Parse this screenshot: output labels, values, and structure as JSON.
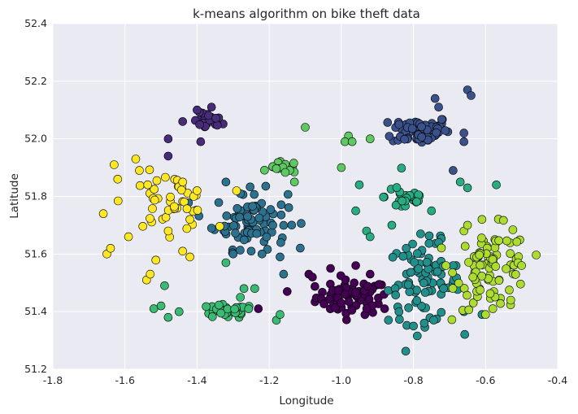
{
  "chart_data": {
    "type": "scatter",
    "title": "k-means algorithm on bike theft data",
    "xlabel": "Longitude",
    "ylabel": "Latitude",
    "xlim": [
      -1.8,
      -0.4
    ],
    "ylim": [
      51.2,
      52.4
    ],
    "xticks": [
      "-1.8",
      "-1.6",
      "-1.4",
      "-1.2",
      "-1.0",
      "-0.8",
      "-0.6",
      "-0.4"
    ],
    "yticks": [
      "51.2",
      "51.4",
      "51.6",
      "51.8",
      "52.0",
      "52.2",
      "52.4"
    ],
    "grid": true,
    "colors": {
      "background": "#eaeaf2",
      "grid": "#ffffff",
      "marker_edge": "#000000"
    },
    "clusters": [
      {
        "color": "#440154",
        "center": [
          -0.97,
          51.45
        ],
        "spread": [
          0.05,
          0.03
        ],
        "n": 75,
        "extra": [
          [
            -1.09,
            51.53
          ],
          [
            -0.96,
            51.56
          ],
          [
            -1.23,
            51.41
          ],
          [
            -1.08,
            51.52
          ],
          [
            -1.15,
            51.47
          ],
          [
            -0.92,
            51.53
          ],
          [
            -0.88,
            51.41
          ],
          [
            -1.03,
            51.55
          ]
        ]
      },
      {
        "color": "#472c7a",
        "center": [
          -1.37,
          52.06
        ],
        "spread": [
          0.02,
          0.015
        ],
        "n": 30,
        "extra": [
          [
            -1.4,
            52.1
          ],
          [
            -1.44,
            52.06
          ],
          [
            -1.48,
            52.0
          ],
          [
            -1.48,
            51.94
          ],
          [
            -1.36,
            52.11
          ],
          [
            -1.39,
            51.99
          ]
        ]
      },
      {
        "color": "#3b518b",
        "center": [
          -0.78,
          52.03
        ],
        "spread": [
          0.04,
          0.025
        ],
        "n": 70,
        "extra": [
          [
            -0.74,
            52.14
          ],
          [
            -0.73,
            52.11
          ],
          [
            -0.65,
            52.17
          ],
          [
            -0.64,
            52.15
          ],
          [
            -0.66,
            51.99
          ],
          [
            -0.66,
            52.02
          ],
          [
            -0.84,
            52.05
          ],
          [
            -0.69,
            51.89
          ]
        ]
      },
      {
        "color": "#2c718e",
        "center": [
          -1.25,
          51.72
        ],
        "spread": [
          0.05,
          0.05
        ],
        "n": 80,
        "extra": [
          [
            -1.32,
            51.85
          ],
          [
            -1.28,
            51.81
          ],
          [
            -1.25,
            51.61
          ],
          [
            -1.22,
            51.6
          ],
          [
            -1.16,
            51.53
          ],
          [
            -1.17,
            51.59
          ],
          [
            -1.3,
            51.6
          ],
          [
            -1.36,
            51.69
          ],
          [
            -1.19,
            51.7
          ]
        ]
      },
      {
        "color": "#21908d",
        "center": [
          -0.77,
          51.5
        ],
        "spread": [
          0.05,
          0.07
        ],
        "n": 85,
        "extra": [
          [
            -0.84,
            51.4
          ],
          [
            -0.8,
            51.35
          ],
          [
            -0.77,
            51.36
          ],
          [
            -0.66,
            51.4
          ],
          [
            -0.61,
            51.39
          ],
          [
            -0.69,
            51.56
          ],
          [
            -0.62,
            51.59
          ],
          [
            -0.82,
            51.62
          ],
          [
            -0.73,
            51.64
          ],
          [
            -0.78,
            51.67
          ]
        ]
      },
      {
        "color": "#27ad81",
        "center": [
          -0.82,
          51.8
        ],
        "spread": [
          0.03,
          0.03
        ],
        "n": 30,
        "extra": [
          [
            -0.96,
            51.75
          ],
          [
            -0.95,
            51.84
          ],
          [
            -0.93,
            51.68
          ],
          [
            -0.75,
            51.75
          ],
          [
            -0.67,
            51.85
          ],
          [
            -0.65,
            51.83
          ],
          [
            -0.57,
            51.84
          ],
          [
            -0.86,
            51.7
          ],
          [
            -0.92,
            51.66
          ]
        ]
      },
      {
        "color": "#3aba73",
        "center": [
          -1.32,
          51.4
        ],
        "spread": [
          0.04,
          0.012
        ],
        "n": 35,
        "extra": [
          [
            -1.52,
            51.41
          ],
          [
            -1.5,
            51.42
          ],
          [
            -1.48,
            51.38
          ],
          [
            -1.45,
            51.4
          ],
          [
            -1.27,
            51.48
          ],
          [
            -1.24,
            51.48
          ],
          [
            -1.28,
            51.45
          ],
          [
            -1.32,
            51.57
          ],
          [
            -1.18,
            51.37
          ],
          [
            -1.17,
            51.39
          ],
          [
            -1.49,
            51.49
          ]
        ]
      },
      {
        "color": "#5ec962",
        "center": [
          -1.16,
          51.9
        ],
        "spread": [
          0.02,
          0.01
        ],
        "n": 20,
        "extra": [
          [
            -1.1,
            52.04
          ],
          [
            -0.98,
            52.01
          ],
          [
            -0.99,
            51.99
          ],
          [
            -1.0,
            51.9
          ],
          [
            -1.13,
            51.85
          ],
          [
            -0.92,
            52.0
          ],
          [
            -0.97,
            51.99
          ]
        ]
      },
      {
        "color": "#addc30",
        "center": [
          -0.58,
          51.55
        ],
        "spread": [
          0.05,
          0.07
        ],
        "n": 85,
        "extra": [
          [
            -0.51,
            51.57
          ],
          [
            -0.5,
            51.56
          ],
          [
            -0.53,
            51.44
          ],
          [
            -0.6,
            51.39
          ],
          [
            -0.58,
            51.41
          ],
          [
            -0.71,
            51.56
          ],
          [
            -0.66,
            51.68
          ],
          [
            -0.61,
            51.72
          ],
          [
            -0.65,
            51.7
          ]
        ]
      },
      {
        "color": "#fde725",
        "center": [
          -1.48,
          51.78
        ],
        "spread": [
          0.06,
          0.05
        ],
        "n": 45,
        "extra": [
          [
            -1.65,
            51.6
          ],
          [
            -1.66,
            51.74
          ],
          [
            -1.64,
            51.62
          ],
          [
            -1.63,
            51.91
          ],
          [
            -1.62,
            51.86
          ],
          [
            -1.59,
            51.66
          ],
          [
            -1.57,
            51.93
          ],
          [
            -1.56,
            51.89
          ],
          [
            -1.54,
            51.51
          ],
          [
            -1.53,
            51.53
          ],
          [
            -1.42,
            51.59
          ],
          [
            -1.44,
            51.61
          ],
          [
            -1.44,
            51.85
          ],
          [
            -1.48,
            51.68
          ],
          [
            -1.4,
            51.82
          ],
          [
            -1.42,
            51.72
          ]
        ]
      }
    ]
  }
}
